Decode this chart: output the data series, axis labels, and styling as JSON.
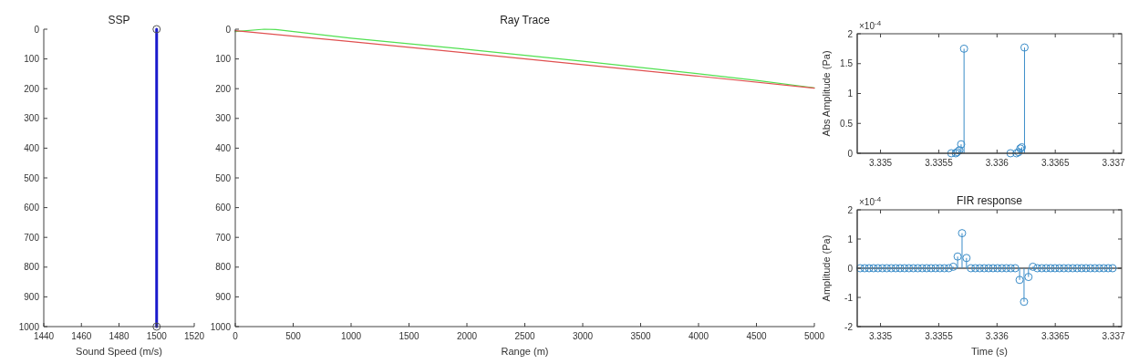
{
  "chart_data": [
    {
      "type": "line",
      "title": "SSP",
      "xlabel": "Sound Speed (m/s)",
      "xlim": [
        1440,
        1520
      ],
      "xticks": [
        1440,
        1460,
        1480,
        1500,
        1520
      ],
      "ylim": [
        1000,
        0
      ],
      "yticks": [
        0,
        100,
        200,
        300,
        400,
        500,
        600,
        700,
        800,
        900,
        1000
      ],
      "marker": "circle",
      "series": [
        {
          "color": "#1a1acc",
          "x": [
            1500,
            1500
          ],
          "values": [
            0,
            1000
          ]
        }
      ]
    },
    {
      "type": "line",
      "title": "Ray Trace",
      "xlabel": "Range (m)",
      "xlim": [
        0,
        5000
      ],
      "xticks": [
        0,
        500,
        1000,
        1500,
        2000,
        2500,
        3000,
        3500,
        4000,
        4500,
        5000
      ],
      "ylim": [
        1000,
        0
      ],
      "yticks": [
        0,
        100,
        200,
        300,
        400,
        500,
        600,
        700,
        800,
        900,
        1000
      ],
      "series": [
        {
          "color": "#50e050",
          "x": [
            0,
            250,
            350,
            1000,
            2000,
            3000,
            4000,
            4500,
            5000
          ],
          "values": [
            8,
            0,
            1,
            30,
            68,
            108,
            150,
            172,
            197
          ]
        },
        {
          "color": "#e05050",
          "x": [
            0,
            1000,
            2000,
            3000,
            4000,
            5000
          ],
          "values": [
            5,
            42,
            80,
            119,
            158,
            198
          ]
        }
      ]
    },
    {
      "type": "lollipop",
      "ylabel": "Abs Amplitude (Pa)",
      "annotations": [
        "×10$^{-4}$"
      ],
      "xlim": [
        3.3348,
        3.33707
      ],
      "xticks": [
        3.335,
        3.3355,
        3.336,
        3.3365,
        3.337
      ],
      "ylim": [
        0,
        2
      ],
      "yticks": [
        0,
        0.5,
        1,
        1.5,
        2
      ],
      "marker": "circle",
      "series": [
        {
          "color": "#3a8cc8",
          "x": [
            3.335608,
            3.335646,
            3.335658,
            3.335677,
            3.335692,
            3.335717,
            3.336116,
            3.336167,
            3.336185,
            3.3362,
            3.336213,
            3.336236
          ],
          "values": [
            0,
            0,
            0.02,
            0.05,
            0.15,
            1.75,
            0,
            0,
            0.02,
            0.08,
            0.1,
            1.77
          ]
        }
      ]
    },
    {
      "type": "lollipop",
      "title": "FIR response",
      "xlabel": "Time (s)",
      "ylabel": "Amplitude (Pa)",
      "annotations": [
        "×10$^{-4}$"
      ],
      "xlim": [
        3.3348,
        3.33707
      ],
      "xticks": [
        3.335,
        3.3355,
        3.336,
        3.3365,
        3.337
      ],
      "ylim": [
        -2,
        2
      ],
      "yticks": [
        -2,
        -1,
        0,
        1,
        2
      ],
      "marker": "circle",
      "series": [
        {
          "color": "#3a8cc8",
          "x": [
            3.334826,
            3.334864,
            3.334902,
            3.33494,
            3.334978,
            3.335016,
            3.335054,
            3.335092,
            3.33513,
            3.335168,
            3.335206,
            3.335244,
            3.335282,
            3.33532,
            3.335358,
            3.335396,
            3.335434,
            3.335472,
            3.33551,
            3.335548,
            3.335586,
            3.335624,
            3.335662,
            3.3357,
            3.335738,
            3.335776,
            3.335814,
            3.335852,
            3.33589,
            3.335928,
            3.335966,
            3.336004,
            3.336042,
            3.33608,
            3.336118,
            3.336156,
            3.336194,
            3.336232,
            3.33627,
            3.336308,
            3.336346,
            3.336384,
            3.336422,
            3.33646,
            3.336498,
            3.336536,
            3.336574,
            3.336612,
            3.33665,
            3.336688,
            3.336726,
            3.336764,
            3.336802,
            3.33684,
            3.336878,
            3.336916,
            3.336954,
            3.336992
          ],
          "values": [
            0,
            0,
            0,
            0,
            0,
            0,
            0,
            0,
            0,
            0,
            0,
            0,
            0,
            0,
            0,
            0,
            0,
            0,
            0,
            0,
            0,
            0.05,
            0.4,
            1.2,
            0.35,
            0,
            0,
            0,
            0,
            0,
            0,
            0,
            0,
            0,
            0,
            0,
            -0.4,
            -1.15,
            -0.3,
            0.05,
            0,
            0,
            0,
            0,
            0,
            0,
            0,
            0,
            0,
            0,
            0,
            0,
            0,
            0,
            0,
            0,
            0,
            0
          ]
        }
      ]
    }
  ]
}
